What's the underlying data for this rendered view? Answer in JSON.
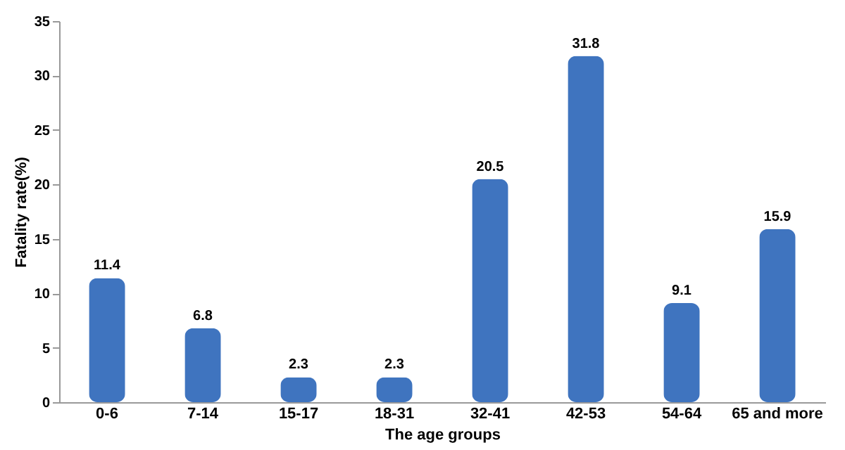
{
  "chart_data": {
    "type": "bar",
    "xlabel": "The age groups",
    "ylabel": "Fatality rate(%)",
    "categories": [
      "0-6",
      "7-14",
      "15-17",
      "18-31",
      "32-41",
      "42-53",
      "54-64",
      "65 and more"
    ],
    "values": [
      11.4,
      6.8,
      2.3,
      2.3,
      20.5,
      31.8,
      9.1,
      15.9
    ],
    "color": "#3f74bf",
    "ylim": [
      0,
      35
    ],
    "yticks": [
      0,
      5,
      10,
      15,
      20,
      25,
      30,
      35
    ],
    "data_labels": true
  }
}
